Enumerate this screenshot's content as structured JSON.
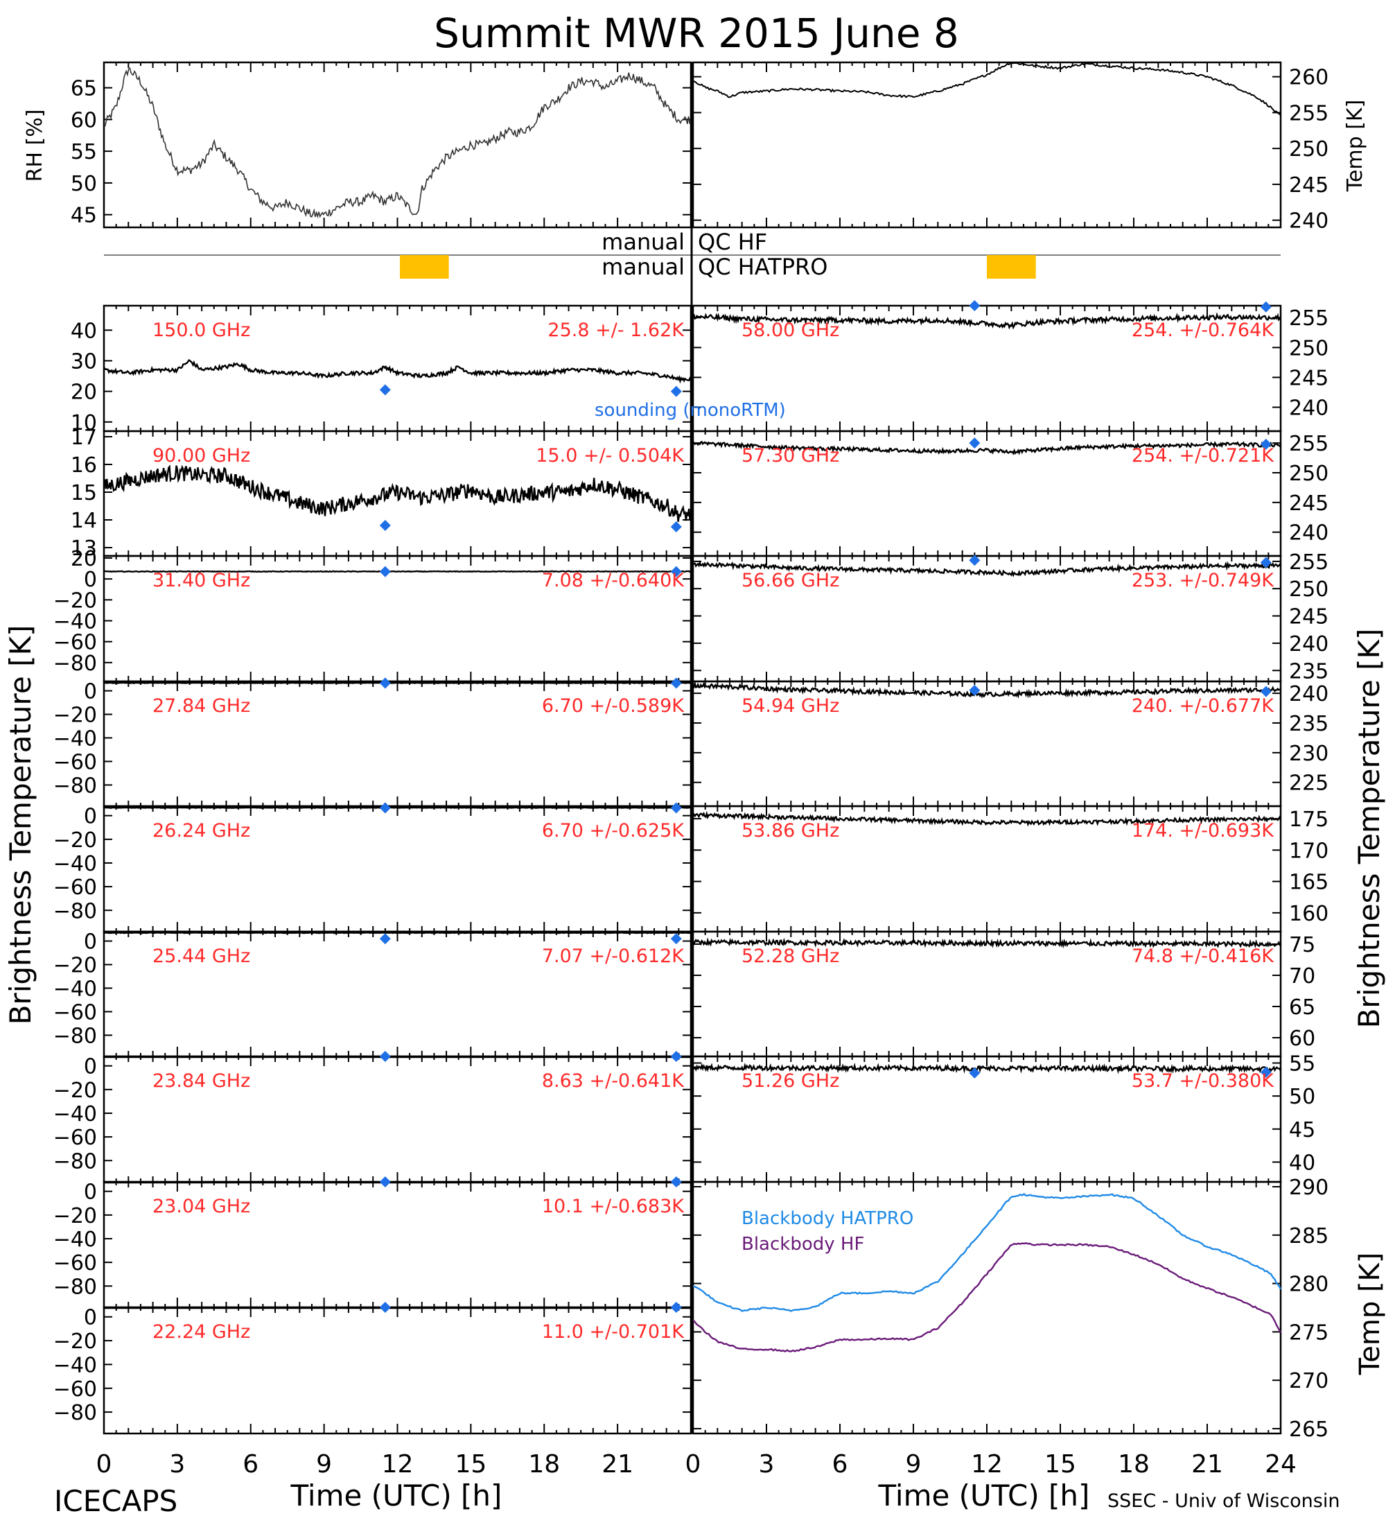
{
  "title": "Summit MWR 2015 June  8",
  "credit_left": "ICECAPS",
  "credit_right": "SSEC - Univ of Wisconsin",
  "colors": {
    "ink": "#000000",
    "label_red": "#ff2a2a",
    "sounding_blue": "#1f6fe6",
    "qc_flag": "#ffc000",
    "bb_hatpro": "#1f8ae6",
    "bb_hf": "#6a1a78"
  },
  "axes": {
    "xlabel": "Time (UTC) [h]",
    "xticks": [
      "0",
      "3",
      "6",
      "9",
      "12",
      "15",
      "18",
      "21",
      "24"
    ],
    "left_ylabel": "Brightness Temperature [K]",
    "right_ylabel": "Brightness Temperature [K]"
  },
  "qc": {
    "hf_label_left": "manual",
    "hf_label_right": "QC HF",
    "hatpro_label_left": "manual",
    "hatpro_label_right": "QC HATPRO",
    "hf_flags": [],
    "hatpro_left_flag_hours": [
      12.1,
      14.1
    ],
    "hatpro_right_flag_hours": [
      12.0,
      14.0
    ]
  },
  "legend": {
    "sounding": "sounding (monoRTM)",
    "bb_hatpro": "Blackbody HATPRO",
    "bb_hf": "Blackbody HF"
  },
  "chart_data": [
    {
      "id": "rh",
      "type": "line",
      "ylabel": "RH [%]",
      "ylim": [
        43,
        69
      ],
      "yticks": [
        "45",
        "50",
        "55",
        "60",
        "65"
      ],
      "x": [
        0,
        0.5,
        0.8,
        1.0,
        1.5,
        2.0,
        2.5,
        3.0,
        3.5,
        4.0,
        4.5,
        5.0,
        5.5,
        6.0,
        6.5,
        7.0,
        7.5,
        8.0,
        8.5,
        9.0,
        9.5,
        10.0,
        10.5,
        11.0,
        11.5,
        12.0,
        12.5,
        12.8,
        13.0,
        13.5,
        14.0,
        14.5,
        15.0,
        15.5,
        16.0,
        16.5,
        17.0,
        17.5,
        18.0,
        18.5,
        19.0,
        19.5,
        20.0,
        20.5,
        21.0,
        21.5,
        22.0,
        22.5,
        23.0,
        23.5
      ],
      "values": [
        59,
        62,
        66,
        68,
        66,
        62,
        56,
        52,
        52,
        53,
        56,
        54,
        52,
        49,
        47,
        46,
        47,
        46,
        45,
        45,
        46,
        47,
        47,
        48,
        47,
        48,
        46,
        45,
        49,
        52,
        54,
        55,
        56,
        56,
        57,
        58,
        58,
        59,
        62,
        63,
        65,
        66,
        66,
        65,
        66,
        67,
        66,
        65,
        62,
        60
      ]
    },
    {
      "id": "temp",
      "type": "line",
      "ylabel": "Temp [K]",
      "ylim": [
        239,
        262
      ],
      "yticks": [
        "240",
        "245",
        "250",
        "255",
        "260"
      ],
      "x": [
        0,
        0.5,
        1.0,
        1.5,
        2.0,
        3.0,
        4.0,
        5.0,
        6.0,
        7.0,
        8.0,
        9.0,
        10.0,
        11.0,
        12.0,
        12.5,
        13.0,
        14.0,
        15.0,
        16.0,
        17.0,
        18.0,
        19.0,
        20.0,
        21.0,
        22.0,
        23.0,
        23.5,
        24.0
      ],
      "values": [
        259.5,
        258.5,
        258.0,
        257.2,
        257.8,
        258.0,
        258.3,
        258.2,
        258.0,
        257.9,
        257.4,
        257.2,
        258.0,
        259.0,
        260.3,
        261.2,
        262.0,
        261.5,
        261.2,
        261.8,
        261.5,
        261.2,
        261.0,
        260.6,
        260.0,
        258.8,
        257.2,
        256.0,
        254.5
      ]
    },
    {
      "id": "ch150",
      "type": "line",
      "label": "150.0 GHz",
      "stat": "25.8 +/-  1.62K",
      "ylim": [
        7,
        48
      ],
      "yticks": [
        "10",
        "20",
        "30",
        "40"
      ],
      "axis": "left",
      "x": [
        0,
        1,
        2,
        3,
        3.5,
        4,
        5,
        5.5,
        6,
        7,
        8,
        9,
        10,
        11,
        11.5,
        12,
        13,
        14,
        14.5,
        15,
        16,
        17,
        18,
        19,
        20,
        21,
        22,
        23,
        23.5
      ],
      "values": [
        27,
        26,
        27,
        27,
        30,
        27,
        28,
        29,
        27,
        26,
        26,
        25,
        26,
        26,
        28,
        26,
        25,
        26,
        28,
        26,
        26,
        26,
        26,
        27,
        27,
        26,
        26,
        25,
        24
      ],
      "noise": 0.6,
      "sounding": {
        "x": [
          11.5,
          23.4
        ],
        "values": [
          20.5,
          20.0
        ]
      }
    },
    {
      "id": "ch090",
      "type": "line",
      "label": "90.00 GHz",
      "stat": "15.0 +/- 0.504K",
      "ylim": [
        12.7,
        17.2
      ],
      "yticks": [
        "13",
        "14",
        "15",
        "16",
        "17"
      ],
      "axis": "left",
      "x": [
        0,
        1,
        2,
        3,
        4,
        5,
        6,
        7,
        8,
        9,
        10,
        11,
        12,
        13,
        14,
        15,
        16,
        17,
        18,
        19,
        20,
        21,
        22,
        23,
        23.5
      ],
      "values": [
        15.2,
        15.4,
        15.6,
        15.7,
        15.6,
        15.6,
        15.2,
        14.9,
        14.6,
        14.4,
        14.6,
        14.8,
        15.0,
        14.8,
        14.9,
        15.1,
        14.8,
        14.9,
        15.0,
        15.0,
        15.3,
        15.1,
        14.8,
        14.5,
        14.2
      ],
      "noise": 0.28,
      "sounding": {
        "x": [
          11.5,
          23.4
        ],
        "values": [
          13.8,
          13.75
        ]
      }
    },
    {
      "id": "ch3140",
      "type": "line",
      "label": "31.40 GHz",
      "stat": "7.08 +/-0.640K",
      "ylim": [
        -98,
        22
      ],
      "yticks": [
        "20",
        "0",
        "−20",
        "−40",
        "−60",
        "−80"
      ],
      "axis": "left",
      "x": [
        0,
        24
      ],
      "values": [
        7.1,
        7.1
      ],
      "noise": 0.3,
      "sounding": {
        "x": [
          11.5,
          23.4
        ],
        "values": [
          7.0,
          7.0
        ]
      }
    },
    {
      "id": "ch2784",
      "type": "line",
      "label": "27.84 GHz",
      "stat": "6.70 +/-0.589K",
      "ylim": [
        -98,
        8
      ],
      "yticks": [
        "0",
        "−20",
        "−40",
        "−60",
        "−80"
      ],
      "axis": "left",
      "x": [
        0,
        24
      ],
      "values": [
        6.7,
        6.7
      ],
      "noise": 0.2,
      "sounding": {
        "x": [
          11.5,
          23.4
        ],
        "values": [
          6.5,
          6.5
        ]
      }
    },
    {
      "id": "ch2624",
      "type": "line",
      "label": "26.24 GHz",
      "stat": "6.70 +/-0.625K",
      "ylim": [
        -98,
        8
      ],
      "yticks": [
        "0",
        "−20",
        "−40",
        "−60",
        "−80"
      ],
      "axis": "left",
      "x": [
        0,
        24
      ],
      "values": [
        6.7,
        6.7
      ],
      "noise": 0.2,
      "sounding": {
        "x": [
          11.5,
          23.4
        ],
        "values": [
          6.5,
          6.5
        ]
      }
    },
    {
      "id": "ch2544",
      "type": "line",
      "label": "25.44 GHz",
      "stat": "7.07 +/-0.612K",
      "ylim": [
        -98,
        8
      ],
      "yticks": [
        "0",
        "−20",
        "−40",
        "−60",
        "−80"
      ],
      "axis": "left",
      "x": [
        0,
        24
      ],
      "values": [
        7.0,
        7.0
      ],
      "noise": 0.2,
      "sounding": {
        "x": [
          11.5,
          23.4
        ],
        "values": [
          2.0,
          2.0
        ]
      }
    },
    {
      "id": "ch2384",
      "type": "line",
      "label": "23.84 GHz",
      "stat": "8.63 +/-0.641K",
      "ylim": [
        -98,
        8
      ],
      "yticks": [
        "0",
        "−20",
        "−40",
        "−60",
        "−80"
      ],
      "axis": "left",
      "x": [
        0,
        24
      ],
      "values": [
        8.6,
        8.6
      ],
      "noise": 0.2,
      "sounding": {
        "x": [
          11.5,
          23.4
        ],
        "values": [
          8.0,
          8.0
        ]
      }
    },
    {
      "id": "ch2304",
      "type": "line",
      "label": "23.04 GHz",
      "stat": "10.1 +/-0.683K",
      "ylim": [
        -98,
        8
      ],
      "yticks": [
        "0",
        "−20",
        "−40",
        "−60",
        "−80"
      ],
      "axis": "left",
      "x": [
        0,
        24
      ],
      "values": [
        10.1,
        10.1
      ],
      "noise": 0.2,
      "sounding": {
        "x": [
          11.5,
          23.4
        ],
        "values": [
          8.0,
          8.0
        ]
      }
    },
    {
      "id": "ch2224",
      "type": "line",
      "label": "22.24 GHz",
      "stat": "11.0 +/-0.701K",
      "ylim": [
        -98,
        8
      ],
      "yticks": [
        "0",
        "−20",
        "−40",
        "−60",
        "−80"
      ],
      "axis": "left",
      "x": [
        0,
        24
      ],
      "values": [
        11.0,
        11.0
      ],
      "noise": 0.2,
      "sounding": {
        "x": [
          11.5,
          23.4
        ],
        "values": [
          8.0,
          8.0
        ]
      }
    },
    {
      "id": "ch5800",
      "type": "line",
      "label": "58.00 GHz",
      "stat": "254. +/-0.764K",
      "ylim": [
        236,
        257
      ],
      "yticks": [
        "240",
        "245",
        "250",
        "255"
      ],
      "axis": "right",
      "x": [
        0,
        2,
        4,
        6,
        8,
        10,
        12,
        13,
        14,
        16,
        18,
        20,
        22,
        24
      ],
      "values": [
        255.2,
        254.8,
        254.6,
        254.6,
        254.4,
        254.6,
        254.0,
        253.7,
        254.2,
        254.6,
        254.8,
        255.0,
        255.1,
        255.0
      ],
      "noise": 0.4,
      "sounding": {
        "x": [
          11.5,
          23.4
        ],
        "values": [
          257.0,
          256.8
        ]
      }
    },
    {
      "id": "ch5730",
      "type": "line",
      "label": "57.30 GHz",
      "stat": "254. +/-0.721K",
      "ylim": [
        236,
        257
      ],
      "yticks": [
        "240",
        "245",
        "250",
        "255"
      ],
      "axis": "right",
      "x": [
        0,
        2,
        4,
        6,
        8,
        10,
        12,
        13,
        14,
        16,
        18,
        20,
        22,
        24
      ],
      "values": [
        255.0,
        254.6,
        254.2,
        254.0,
        253.8,
        253.6,
        253.8,
        253.5,
        253.8,
        254.3,
        254.5,
        254.6,
        254.8,
        254.6
      ],
      "noise": 0.3,
      "sounding": {
        "x": [
          11.5,
          23.4
        ],
        "values": [
          255.0,
          254.8
        ]
      }
    },
    {
      "id": "ch5666",
      "type": "line",
      "label": "56.66 GHz",
      "stat": "253. +/-0.749K",
      "ylim": [
        233,
        256
      ],
      "yticks": [
        "235",
        "240",
        "245",
        "250",
        "255"
      ],
      "axis": "right",
      "x": [
        0,
        2,
        4,
        6,
        8,
        10,
        12,
        13,
        14,
        16,
        18,
        20,
        22,
        24
      ],
      "values": [
        254.5,
        254.2,
        253.8,
        253.6,
        253.4,
        253.2,
        253.0,
        252.8,
        253.0,
        253.5,
        253.8,
        254.0,
        254.2,
        254.2
      ],
      "noise": 0.35,
      "sounding": {
        "x": [
          11.5,
          23.4
        ],
        "values": [
          255.2,
          254.8
        ]
      }
    },
    {
      "id": "ch5494",
      "type": "line",
      "label": "54.94 GHz",
      "stat": "240. +/-0.677K",
      "ylim": [
        221,
        242
      ],
      "yticks": [
        "225",
        "230",
        "235",
        "240"
      ],
      "axis": "right",
      "x": [
        0,
        2,
        4,
        6,
        8,
        10,
        12,
        14,
        16,
        18,
        20,
        22,
        24
      ],
      "values": [
        241.3,
        241.0,
        240.6,
        240.4,
        240.2,
        240.0,
        239.8,
        240.0,
        240.1,
        240.2,
        240.4,
        240.5,
        240.6
      ],
      "noise": 0.35,
      "sounding": {
        "x": [
          11.5,
          23.4
        ],
        "values": [
          240.5,
          240.3
        ]
      }
    },
    {
      "id": "ch5386",
      "type": "line",
      "label": "53.86 GHz",
      "stat": "174. +/-0.693K",
      "ylim": [
        157,
        177
      ],
      "yticks": [
        "160",
        "165",
        "170",
        "175"
      ],
      "axis": "right",
      "x": [
        0,
        2,
        4,
        6,
        8,
        10,
        12,
        14,
        16,
        18,
        20,
        22,
        24
      ],
      "values": [
        175.6,
        175.4,
        175.2,
        175.0,
        174.8,
        174.6,
        174.4,
        174.4,
        174.5,
        174.6,
        174.8,
        174.9,
        175.0
      ],
      "noise": 0.3,
      "sounding": {
        "x": [],
        "values": []
      }
    },
    {
      "id": "ch5228",
      "type": "line",
      "label": "52.28 GHz",
      "stat": "74.8 +/-0.416K",
      "ylim": [
        57,
        77
      ],
      "yticks": [
        "60",
        "65",
        "70",
        "75"
      ],
      "axis": "right",
      "x": [
        0,
        24
      ],
      "values": [
        75.3,
        75.0
      ],
      "noise": 0.35,
      "sounding": {
        "x": [],
        "values": []
      }
    },
    {
      "id": "ch5126",
      "type": "line",
      "label": "51.26 GHz",
      "stat": "53.7 +/-0.380K",
      "ylim": [
        37,
        56
      ],
      "yticks": [
        "40",
        "45",
        "50",
        "55"
      ],
      "axis": "right",
      "x": [
        0,
        24
      ],
      "values": [
        54.3,
        54.1
      ],
      "noise": 0.35,
      "sounding": {
        "x": [
          11.5,
          23.4
        ],
        "values": [
          53.5,
          53.6
        ]
      }
    },
    {
      "id": "blackbody",
      "type": "line",
      "ylabel": "Temp [K]",
      "ylim": [
        264.5,
        290.5
      ],
      "yticks": [
        "265",
        "270",
        "275",
        "280",
        "285",
        "290"
      ],
      "series": [
        {
          "name": "Blackbody HATPRO",
          "x": [
            0,
            0.5,
            1,
            2,
            3,
            4,
            5,
            5.5,
            6,
            7,
            8,
            9,
            10,
            11,
            12,
            13,
            13.5,
            14,
            15,
            16,
            17,
            18,
            19,
            20,
            21,
            22,
            23,
            23.6,
            24
          ],
          "values": [
            279.8,
            279.0,
            278.0,
            277.2,
            277.5,
            277.2,
            277.6,
            278.3,
            279.0,
            279.0,
            279.2,
            279.0,
            280.2,
            283.0,
            286.0,
            289.0,
            289.2,
            289.0,
            288.8,
            289.0,
            289.2,
            288.8,
            287.0,
            285.0,
            283.8,
            283.0,
            281.8,
            281.0,
            279.4
          ]
        },
        {
          "name": "Blackbody HF",
          "x": [
            0,
            0.5,
            1,
            2,
            3,
            4,
            5,
            6,
            7,
            8,
            9,
            10,
            11,
            12,
            13,
            13.5,
            14,
            15,
            16,
            17,
            18,
            19,
            20,
            21,
            22,
            23,
            23.6,
            24
          ],
          "values": [
            276.2,
            275.0,
            274.0,
            273.2,
            273.2,
            273.0,
            273.4,
            274.2,
            274.2,
            274.3,
            274.2,
            275.4,
            278.0,
            281.0,
            284.0,
            284.2,
            284.0,
            284.0,
            284.0,
            283.8,
            283.0,
            282.0,
            280.5,
            279.5,
            278.6,
            277.5,
            276.8,
            275.0
          ]
        }
      ]
    }
  ]
}
